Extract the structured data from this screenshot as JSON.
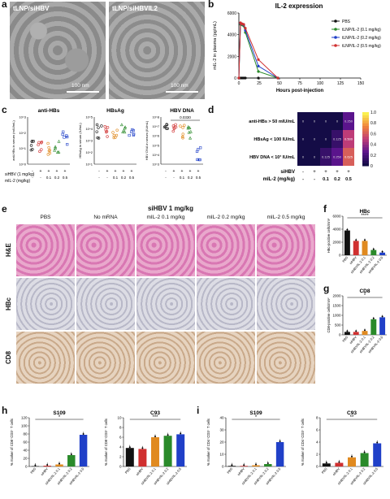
{
  "panels": {
    "a": {
      "letter": "a",
      "images": [
        {
          "label": "tLNP/siHBV",
          "scale": "100 nm"
        },
        {
          "label": "tLNP/siHBVIL2",
          "scale": "100 nm"
        }
      ]
    },
    "b": {
      "letter": "b"
    },
    "c": {
      "letter": "c"
    },
    "d": {
      "letter": "d"
    },
    "e": {
      "letter": "e",
      "header": "siHBV 1 mg/kg",
      "columns": [
        "PBS",
        "No mRNA",
        "mIL-2 0.1 mg/kg",
        "mIL-2 0.2 mg/kg",
        "mIL-2 0.5 mg/kg"
      ],
      "rows": [
        "H&E",
        "HBc",
        "CD8"
      ]
    },
    "f": {
      "letter": "f"
    },
    "g": {
      "letter": "g"
    },
    "h": {
      "letter": "h"
    },
    "i": {
      "letter": "i"
    }
  },
  "chart_data": [
    {
      "id": "b",
      "type": "line",
      "title": "IL-2 expression",
      "xlabel": "Hours post-injection",
      "ylabel": "mIL-2 in plasma (pg/mL)",
      "x_ticks": [
        "0",
        "25",
        "50",
        "75",
        "100",
        "125",
        "150"
      ],
      "y_ticks": [
        "0",
        "2000",
        "4000",
        "6000"
      ],
      "xlim": [
        0,
        150
      ],
      "ylim": [
        0,
        6000
      ],
      "series": [
        {
          "name": "PBS",
          "color": "#111111",
          "marker": "circle",
          "x": [
            0,
            2,
            4,
            6,
            8,
            24,
            48
          ],
          "y": [
            0,
            0,
            0,
            0,
            0,
            0,
            0
          ]
        },
        {
          "name": "tLNP/IL-2 (0.1 mg/kg)",
          "color": "#2a8a2a",
          "marker": "square",
          "x": [
            0,
            2,
            4,
            6,
            8,
            24,
            48
          ],
          "y": [
            0,
            4950,
            4900,
            4800,
            4200,
            600,
            0
          ]
        },
        {
          "name": "tLNP/IL-2 (0.2 mg/kg)",
          "color": "#2040c8",
          "marker": "triangle",
          "x": [
            0,
            2,
            4,
            6,
            8,
            24,
            48
          ],
          "y": [
            0,
            5050,
            5000,
            4900,
            4400,
            1100,
            0
          ]
        },
        {
          "name": "tLNP/IL-2 (0.5 mg/kg)",
          "color": "#d03030",
          "marker": "triangle-down",
          "x": [
            0,
            2,
            4,
            6,
            8,
            24,
            48
          ],
          "y": [
            0,
            5100,
            5000,
            4950,
            4600,
            1700,
            0
          ]
        }
      ]
    },
    {
      "id": "c",
      "type": "scatter",
      "subplots": [
        {
          "title": "anti-HBs",
          "ylabel": "anti-HBs in serum (mIU/mL)",
          "y_ticks": [
            "10^0",
            "10^1",
            "10^2",
            "10^3"
          ],
          "log": true
        },
        {
          "title": "HBsAg",
          "ylabel": "HBsAg in serum (IU/mL)",
          "y_ticks": [
            "10^1",
            "10^2",
            "10^3",
            "10^4",
            "10^5"
          ],
          "log": true
        },
        {
          "title": "HBV DNA",
          "ylabel": "HBV DNA in serum (IU/mL)",
          "y_ticks": [
            "10^3",
            "10^4",
            "10^5",
            "10^6",
            "10^7",
            "10^8"
          ],
          "log": true,
          "annotation": "0.0330"
        }
      ],
      "groups": [
        {
          "color": "#111111",
          "shape": "circle"
        },
        {
          "color": "#d03030",
          "shape": "circle"
        },
        {
          "color": "#e08a20",
          "shape": "circle"
        },
        {
          "color": "#2a8a2a",
          "shape": "triangle"
        },
        {
          "color": "#2040c8",
          "shape": "square"
        }
      ],
      "row_labels": [
        "siHBV (1 mg/kg)",
        "mIL-2 (mg/kg)"
      ],
      "siHBV": [
        "-",
        "+",
        "+",
        "+",
        "+"
      ],
      "mIL2": [
        "-",
        "-",
        "0.1",
        "0.2",
        "0.5"
      ]
    },
    {
      "id": "d",
      "type": "heatmap",
      "rows": [
        "anti-HBs > 50 mIU/mL",
        "HBsAg < 100 IU/mL",
        "HBV DNA < 10³ IU/mL"
      ],
      "values": [
        [
          0,
          0,
          0,
          0,
          0.25
        ],
        [
          0,
          0,
          0,
          0.125,
          0.5
        ],
        [
          0,
          0,
          0.125,
          0.25,
          0.625
        ]
      ],
      "row_labels": [
        "siHBV",
        "mIL-2 (mg/kg)"
      ],
      "siHBV": [
        "-",
        "+",
        "+",
        "+",
        "+"
      ],
      "mIL2": [
        "-",
        "-",
        "0.1",
        "0.2",
        "0.5"
      ],
      "colorbar_ticks": [
        "0",
        "0.2",
        "0.4",
        "0.6",
        "0.8",
        "1.0"
      ],
      "clim": [
        0,
        1
      ]
    },
    {
      "id": "f",
      "type": "bar",
      "title": "HBc",
      "ylabel": "HBc-positive cells/mm²",
      "categories": [
        "PBS",
        "siHBV",
        "siHBV/IL-2 0.1",
        "siHBV/IL-2 0.2",
        "siHBV/IL-2 0.5"
      ],
      "values": [
        3800,
        2200,
        2200,
        800,
        400
      ],
      "y_ticks": [
        "0",
        "2000",
        "4000",
        "6000"
      ],
      "ylim": [
        0,
        6000
      ],
      "sig": "****"
    },
    {
      "id": "g",
      "type": "bar",
      "title": "CD8",
      "ylabel": "CD8-positive cells/mm²",
      "categories": [
        "PBS",
        "siHBV",
        "siHBV/IL-2 0.1",
        "siHBV/IL-2 0.2",
        "siHBV/IL-2 0.5"
      ],
      "values": [
        150,
        150,
        200,
        800,
        900
      ],
      "y_ticks": [
        "0",
        "500",
        "1000",
        "1500",
        "2000"
      ],
      "ylim": [
        0,
        2000
      ],
      "sig": "*"
    },
    {
      "id": "h1",
      "type": "bar",
      "title": "S109",
      "ylabel": "% marker of CD8⁺CD3⁺ T cells",
      "categories": [
        "PBS",
        "siHBV",
        "siHBV/IL-2 0.1",
        "siHBV/IL-2 0.2",
        "siHBV/IL-2 0.5"
      ],
      "values": [
        1,
        2,
        5,
        28,
        78
      ],
      "y_ticks": [
        "0",
        "20",
        "40",
        "60",
        "80",
        "100",
        "120"
      ],
      "ylim": [
        0,
        120
      ],
      "sig": "*"
    },
    {
      "id": "h2",
      "type": "bar",
      "title": "C93",
      "ylabel": "% marker of CD8⁺CD3⁺ T cells",
      "categories": [
        "PBS",
        "siHBV",
        "siHBV/IL-2 0.1",
        "siHBV/IL-2 0.2",
        "siHBV/IL-2 0.5"
      ],
      "values": [
        3.8,
        3.6,
        6,
        6.3,
        6.6
      ],
      "y_ticks": [
        "0",
        "2",
        "4",
        "6",
        "8",
        "10"
      ],
      "ylim": [
        0,
        10
      ],
      "sig": "***"
    },
    {
      "id": "i1",
      "type": "bar",
      "title": "S109",
      "ylabel": "% marker of CD4⁺CD3⁺ T cells",
      "categories": [
        "PBS",
        "siHBV",
        "siHBV/IL-2 0.1",
        "siHBV/IL-2 0.2",
        "siHBV/IL-2 0.5"
      ],
      "values": [
        0.5,
        0.5,
        1,
        2,
        20
      ],
      "y_ticks": [
        "0",
        "10",
        "20",
        "30",
        "40"
      ],
      "ylim": [
        0,
        40
      ],
      "sig": "*"
    },
    {
      "id": "i2",
      "type": "bar",
      "title": "C93",
      "ylabel": "% marker of CD4⁺CD3⁺ T cells",
      "categories": [
        "PBS",
        "siHBV",
        "siHBV/IL-2 0.1",
        "siHBV/IL-2 0.2",
        "siHBV/IL-2 0.5"
      ],
      "values": [
        0.5,
        0.6,
        1.5,
        2.2,
        3.8
      ],
      "y_ticks": [
        "0",
        "2",
        "4",
        "6",
        "8"
      ],
      "ylim": [
        0,
        8
      ],
      "sig": "**"
    }
  ],
  "bar_colors": [
    "#111111",
    "#d03030",
    "#e08a20",
    "#2a8a2a",
    "#2040c8"
  ],
  "bar_group_labels": [
    "PBS",
    "siHBV",
    "siHBV/IL-2 0.1",
    "siHBV/IL-2 0.2",
    "siHBV/IL-2 0.5"
  ]
}
